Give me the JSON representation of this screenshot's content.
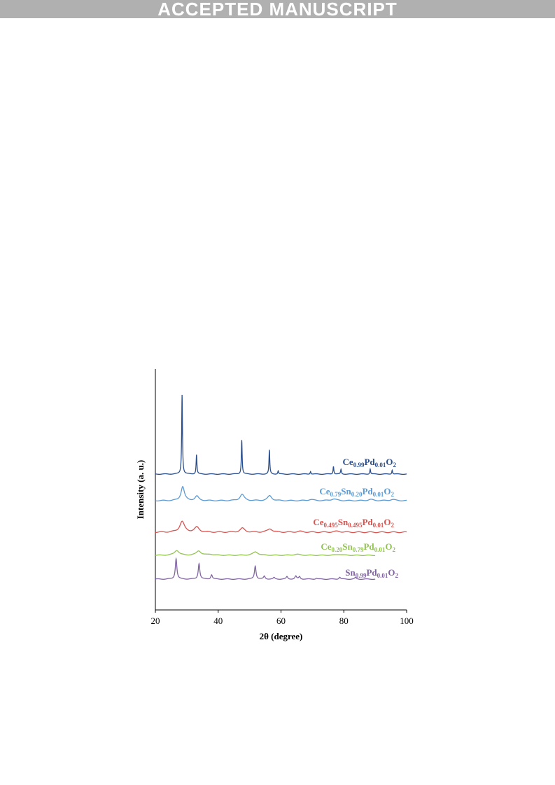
{
  "banner": {
    "text": "ACCEPTED MANUSCRIPT"
  },
  "chart_data": {
    "type": "line",
    "xlabel": "2θ (degree)",
    "ylabel": "Intensity (a. u.)",
    "xlim": [
      20,
      100
    ],
    "xticks": [
      20,
      40,
      60,
      80,
      100
    ],
    "yticks_shown": false,
    "grid": false,
    "legend": "none (series labelled inline)",
    "series": [
      {
        "name": "Ce0.99Pd0.01O2",
        "label_parts": [
          [
            "Ce",
            ""
          ],
          [
            "0.99",
            "sub"
          ],
          [
            "Pd",
            ""
          ],
          [
            "0.01",
            "sub"
          ],
          [
            "O",
            ""
          ],
          [
            "2",
            "sub"
          ]
        ],
        "color": "#2a4f8c",
        "x_range": [
          20,
          100
        ],
        "baseline": 0.2,
        "peaks": [
          [
            28.5,
            8.6,
            0.15
          ],
          [
            33.1,
            2.1,
            0.15
          ],
          [
            47.5,
            3.7,
            0.15
          ],
          [
            56.3,
            2.6,
            0.15
          ],
          [
            59.1,
            0.35,
            0.15
          ],
          [
            69.4,
            0.3,
            0.15
          ],
          [
            76.7,
            0.85,
            0.15
          ],
          [
            79.1,
            0.5,
            0.15
          ],
          [
            88.4,
            0.55,
            0.15
          ],
          [
            95.4,
            0.45,
            0.15
          ]
        ]
      },
      {
        "name": "Ce0.79Sn0.20Pd0.01O2",
        "label_parts": [
          [
            "Ce",
            ""
          ],
          [
            "0.79",
            "sub"
          ],
          [
            "Sn",
            ""
          ],
          [
            "0.20",
            "sub"
          ],
          [
            "Pd",
            ""
          ],
          [
            "0.01",
            "sub"
          ],
          [
            "O",
            ""
          ],
          [
            "2",
            "sub"
          ]
        ],
        "color": "#5b9bd5",
        "x_range": [
          20,
          100
        ],
        "baseline": 0.25,
        "peaks": [
          [
            28.7,
            1.45,
            0.65
          ],
          [
            33.2,
            0.45,
            0.7
          ],
          [
            47.6,
            0.65,
            0.8
          ],
          [
            56.4,
            0.5,
            0.8
          ],
          [
            69.5,
            0.12,
            1.0
          ],
          [
            76.8,
            0.18,
            1.0
          ],
          [
            88.5,
            0.12,
            1.0
          ],
          [
            95.5,
            0.12,
            1.0
          ]
        ]
      },
      {
        "name": "Ce0.495Sn0.495Pd0.01O2",
        "label_parts": [
          [
            "Ce",
            ""
          ],
          [
            "0.495",
            "sub"
          ],
          [
            "Sn",
            ""
          ],
          [
            "0.495",
            "sub"
          ],
          [
            "Pd",
            ""
          ],
          [
            "0.01",
            "sub"
          ],
          [
            "O",
            ""
          ],
          [
            "2",
            "sub"
          ]
        ],
        "color": "#d9534f",
        "x_range": [
          20,
          100
        ],
        "baseline": 0.3,
        "peaks": [
          [
            28.5,
            1.1,
            0.9
          ],
          [
            33.2,
            0.5,
            0.9
          ],
          [
            47.7,
            0.4,
            0.9
          ],
          [
            56.5,
            0.35,
            0.9
          ],
          [
            66.0,
            0.08,
            1.2
          ],
          [
            78.0,
            0.1,
            1.2
          ]
        ]
      },
      {
        "name": "Ce0.20Sn0.79Pd0.01O2",
        "label_parts": [
          [
            "Ce",
            ""
          ],
          [
            "0.20",
            "sub"
          ],
          [
            "Sn",
            ""
          ],
          [
            "0.79",
            "sub"
          ],
          [
            "Pd",
            ""
          ],
          [
            "0.01",
            "sub"
          ],
          [
            "O",
            ""
          ],
          [
            "2",
            "sub"
          ]
        ],
        "color": "#92c353",
        "x_range": [
          20,
          90
        ],
        "baseline": 0.2,
        "peaks": [
          [
            26.8,
            0.5,
            0.9
          ],
          [
            33.8,
            0.45,
            0.9
          ],
          [
            37.5,
            0.1,
            1.0
          ],
          [
            51.9,
            0.35,
            1.0
          ],
          [
            65.0,
            0.1,
            1.2
          ],
          [
            78.5,
            0.1,
            1.2
          ]
        ]
      },
      {
        "name": "Sn0.99Pd0.01O2",
        "label_parts": [
          [
            "Sn",
            ""
          ],
          [
            "0.99",
            "sub"
          ],
          [
            "Pd",
            ""
          ],
          [
            "0.01",
            "sub"
          ],
          [
            "O",
            ""
          ],
          [
            "2",
            "sub"
          ]
        ],
        "color": "#8064a2",
        "x_range": [
          20,
          90
        ],
        "baseline": 0.2,
        "peaks": [
          [
            26.6,
            2.1,
            0.3
          ],
          [
            33.9,
            1.6,
            0.3
          ],
          [
            37.9,
            0.45,
            0.3
          ],
          [
            51.8,
            1.35,
            0.3
          ],
          [
            54.7,
            0.3,
            0.3
          ],
          [
            57.8,
            0.15,
            0.3
          ],
          [
            61.9,
            0.25,
            0.3
          ],
          [
            64.7,
            0.3,
            0.3
          ],
          [
            65.9,
            0.25,
            0.3
          ],
          [
            71.3,
            0.1,
            0.3
          ],
          [
            78.7,
            0.2,
            0.3
          ],
          [
            83.7,
            0.15,
            0.3
          ]
        ]
      }
    ]
  }
}
